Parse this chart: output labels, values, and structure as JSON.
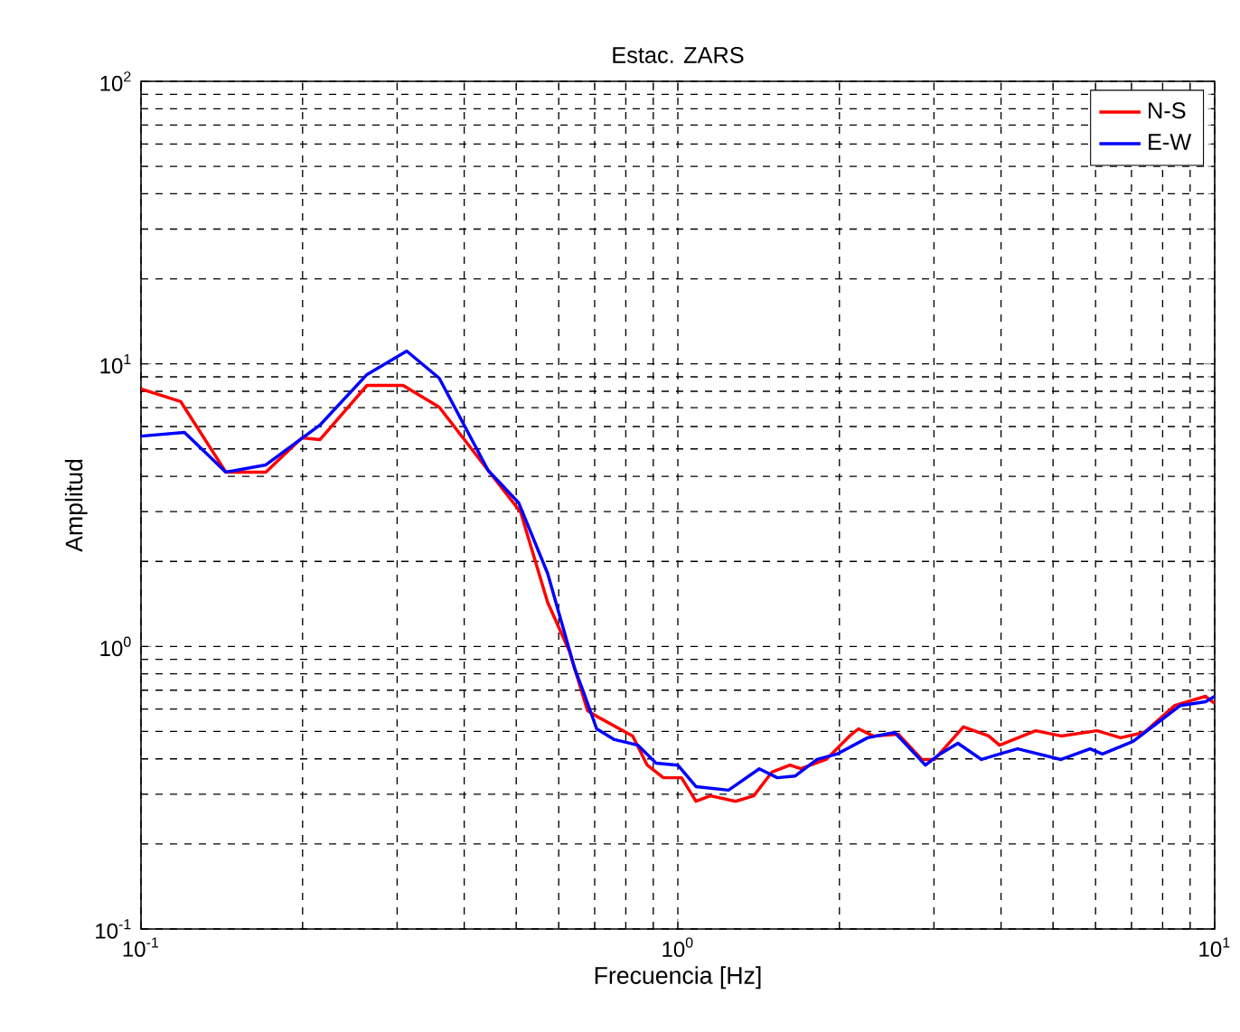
{
  "chart_data": {
    "type": "line",
    "title": "Estac. ZARS",
    "xlabel": "Frecuencia [Hz]",
    "ylabel": "Amplitud",
    "log": "xy",
    "grid": true,
    "legend": "top right",
    "line_style": "solid",
    "marker": "none",
    "xlim": [
      0.1,
      10
    ],
    "ylim": [
      0.1,
      100
    ],
    "xticks": [
      {
        "value": 0.1,
        "label": "10$^{-1}$"
      },
      {
        "value": 1,
        "label": "10$^{0}$"
      },
      {
        "value": 10,
        "label": "10$^{1}$"
      }
    ],
    "yticks": [
      {
        "value": 0.1,
        "label": "10$^{-1}$"
      },
      {
        "value": 1,
        "label": "10$^{0}$"
      },
      {
        "value": 10,
        "label": "10$^{1}$"
      },
      {
        "value": 100,
        "label": "10$^{2}$"
      }
    ],
    "series": [
      {
        "name": "N-S",
        "color": "#ff0000",
        "x": [
          0.1,
          0.1186,
          0.1439,
          0.1708,
          0.1994,
          0.2154,
          0.2636,
          0.3078,
          0.3594,
          0.4432,
          0.5094,
          0.5723,
          0.628,
          0.679,
          0.706,
          0.824,
          0.877,
          0.94,
          1.016,
          1.081,
          1.15,
          1.281,
          1.385,
          1.497,
          1.618,
          1.694,
          1.889,
          2.089,
          2.171,
          2.31,
          2.575,
          2.848,
          3.007,
          3.404,
          3.794,
          3.975,
          4.642,
          5.174,
          6.04,
          6.68,
          7.39,
          8.43,
          9.11,
          9.62,
          10
        ],
        "values": [
          8.15,
          7.35,
          4.14,
          4.14,
          5.47,
          5.39,
          8.39,
          8.39,
          7.03,
          4.2,
          2.99,
          1.43,
          0.962,
          0.592,
          0.566,
          0.482,
          0.38,
          0.343,
          0.343,
          0.283,
          0.296,
          0.283,
          0.296,
          0.359,
          0.38,
          0.369,
          0.398,
          0.482,
          0.511,
          0.482,
          0.489,
          0.398,
          0.398,
          0.519,
          0.482,
          0.447,
          0.503,
          0.482,
          0.503,
          0.475,
          0.496,
          0.618,
          0.646,
          0.666,
          0.628
        ]
      },
      {
        "name": "E-W",
        "color": "#0000ff",
        "x": [
          0.1,
          0.1205,
          0.1439,
          0.1708,
          0.2154,
          0.2636,
          0.3126,
          0.3594,
          0.4432,
          0.5055,
          0.5723,
          0.643,
          0.668,
          0.706,
          0.762,
          0.843,
          0.911,
          1.0,
          1.081,
          1.243,
          1.418,
          1.532,
          1.655,
          1.817,
          1.979,
          2.257,
          2.535,
          2.893,
          3.078,
          3.325,
          3.679,
          3.975,
          4.295,
          5.174,
          5.86,
          6.18,
          7.05,
          7.8,
          8.63,
          9.62,
          10
        ],
        "values": [
          5.55,
          5.72,
          4.14,
          4.39,
          6.07,
          9.17,
          11.1,
          8.9,
          4.2,
          3.22,
          1.81,
          0.831,
          0.686,
          0.511,
          0.468,
          0.447,
          0.386,
          0.38,
          0.319,
          0.31,
          0.369,
          0.343,
          0.348,
          0.398,
          0.416,
          0.475,
          0.496,
          0.38,
          0.416,
          0.454,
          0.398,
          0.416,
          0.434,
          0.398,
          0.434,
          0.416,
          0.461,
          0.534,
          0.618,
          0.637,
          0.666
        ]
      }
    ]
  }
}
